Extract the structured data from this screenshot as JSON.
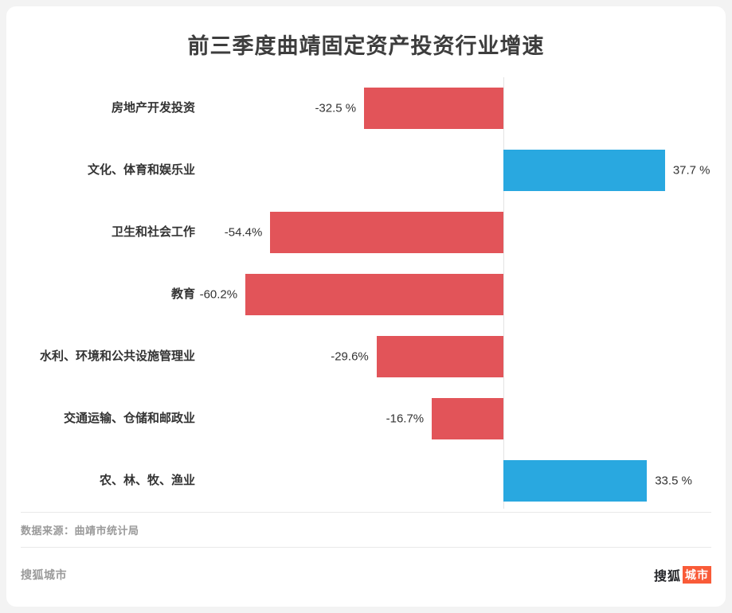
{
  "title": "前三季度曲靖固定资产投资行业增速",
  "chart_data": {
    "type": "bar",
    "orientation": "horizontal",
    "title": "前三季度曲靖固定资产投资行业增速",
    "categories": [
      "房地产开发投资",
      "文化、体育和娱乐业",
      "卫生和社会工作",
      "教育",
      "水利、环境和公共设施管理业",
      "交通运输、仓储和邮政业",
      "农、林、牧、渔业"
    ],
    "values": [
      -32.5,
      37.7,
      -54.4,
      -60.2,
      -29.6,
      -16.7,
      33.5
    ],
    "value_labels": [
      "-32.5 %",
      "37.7 %",
      "-54.4%",
      "-60.2%",
      "-29.6%",
      "-16.7%",
      "33.5 %"
    ],
    "unit": "%",
    "xlim": [
      -72,
      50
    ],
    "grid": false,
    "legend": "none",
    "colors": {
      "negative": "#e25459",
      "positive": "#29a8e0"
    }
  },
  "footer": {
    "source": "数据来源：曲靖市统计局",
    "brand_text": "搜狐城市",
    "logo": {
      "part1": "搜狐",
      "part2": "城市"
    }
  }
}
